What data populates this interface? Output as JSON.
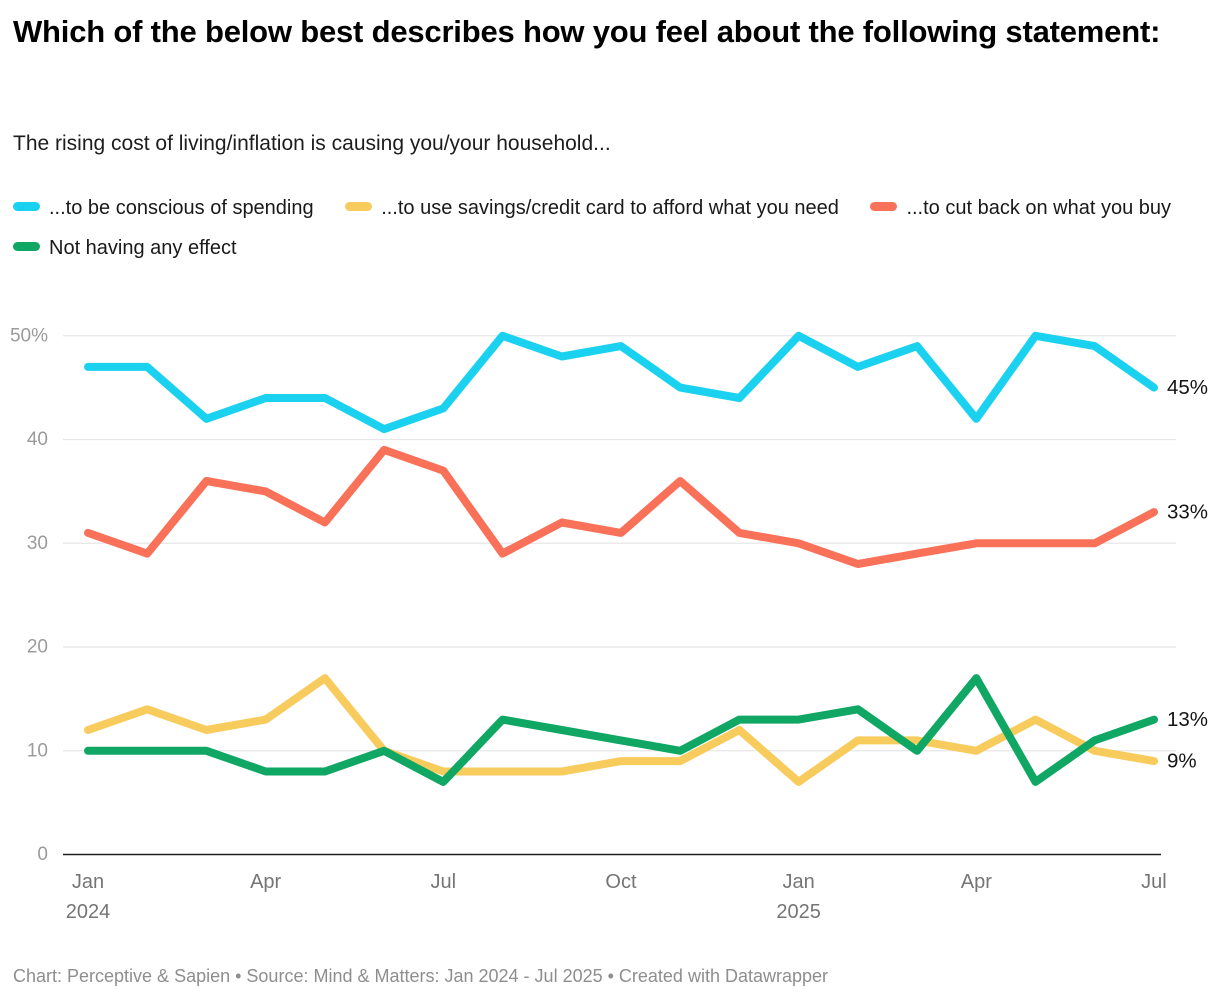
{
  "header": {
    "title": "Which of the below best describes how you feel about the following statement:",
    "subtitle": "The rising cost of living/inflation is causing you/your household..."
  },
  "chart_data": {
    "type": "line",
    "categories": [
      "Jan 2024",
      "Feb 2024",
      "Mar 2024",
      "Apr 2024",
      "May 2024",
      "Jun 2024",
      "Jul 2024",
      "Aug 2024",
      "Sep 2024",
      "Oct 2024",
      "Nov 2024",
      "Dec 2024",
      "Jan 2025",
      "Feb 2025",
      "Mar 2025",
      "Apr 2025",
      "May 2025",
      "Jun 2025",
      "Jul 2025"
    ],
    "unit": "%",
    "series": [
      {
        "name": "...to be conscious of spending",
        "color": "#1BD1F0",
        "values": [
          47,
          47,
          42,
          44,
          44,
          41,
          43,
          50,
          48,
          49,
          45,
          44,
          50,
          47,
          49,
          42,
          50,
          49,
          45
        ],
        "end_label": "45%"
      },
      {
        "name": "...to use savings/credit card to afford what you need",
        "color": "#F8CB5D",
        "values": [
          12,
          14,
          12,
          13,
          17,
          10,
          8,
          8,
          8,
          9,
          9,
          12,
          7,
          11,
          11,
          10,
          13,
          10,
          9
        ],
        "end_label": "9%"
      },
      {
        "name": "...to cut back on what you buy",
        "color": "#F97158",
        "values": [
          31,
          29,
          36,
          35,
          32,
          39,
          37,
          29,
          32,
          31,
          36,
          31,
          30,
          28,
          29,
          30,
          30,
          30,
          33
        ],
        "end_label": "33%"
      },
      {
        "name": "Not having any effect",
        "color": "#0FA763",
        "values": [
          10,
          10,
          10,
          8,
          8,
          10,
          7,
          13,
          12,
          11,
          10,
          13,
          13,
          14,
          10,
          17,
          7,
          11,
          13
        ],
        "end_label": "13%"
      }
    ],
    "ylim": [
      0,
      50
    ],
    "yticks": [
      {
        "value": 0,
        "label": "0"
      },
      {
        "value": 10,
        "label": "10"
      },
      {
        "value": 20,
        "label": "20"
      },
      {
        "value": 30,
        "label": "30"
      },
      {
        "value": 40,
        "label": "40"
      },
      {
        "value": 50,
        "label": "50%"
      }
    ],
    "xticks": [
      {
        "index": 0,
        "label": "Jan",
        "sublabel": "2024"
      },
      {
        "index": 3,
        "label": "Apr"
      },
      {
        "index": 6,
        "label": "Jul"
      },
      {
        "index": 9,
        "label": "Oct"
      },
      {
        "index": 12,
        "label": "Jan",
        "sublabel": "2025"
      },
      {
        "index": 15,
        "label": "Apr"
      },
      {
        "index": 18,
        "label": "Jul"
      }
    ],
    "grid": true,
    "legend_position": "top"
  },
  "footer": {
    "text": "Chart: Perceptive & Sapien • Source: Mind & Matters: Jan 2024 - Jul 2025 • Created with Datawrapper"
  }
}
